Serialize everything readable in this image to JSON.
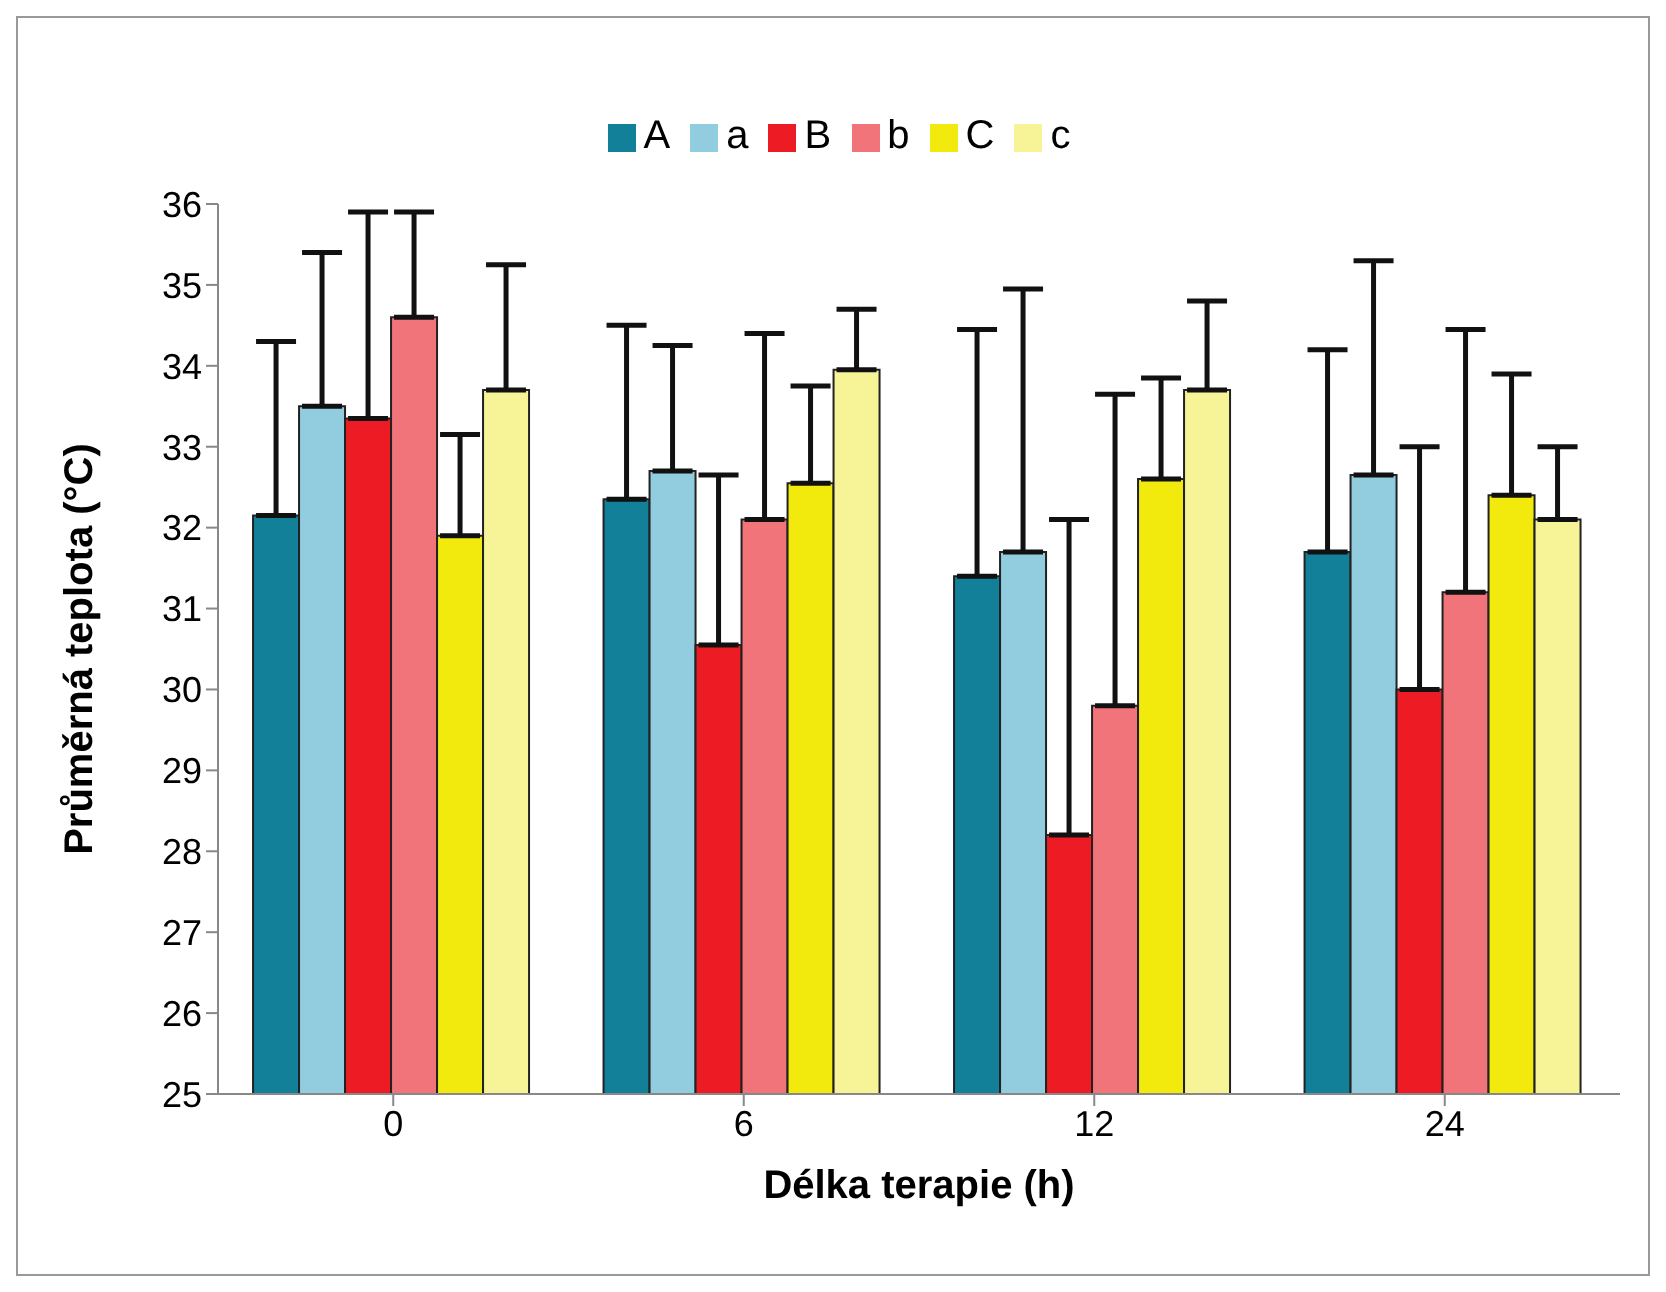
{
  "chart_data": {
    "type": "bar",
    "xlabel": "Délka terapie (h)",
    "ylabel": "Průměrná teplota (°C)",
    "categories": [
      "0",
      "6",
      "12",
      "24"
    ],
    "series": [
      {
        "name": "A",
        "color": "#13809a",
        "values": [
          32.15,
          32.35,
          31.4,
          31.7
        ],
        "errors": [
          [
            32.15,
            34.3
          ],
          [
            32.35,
            34.5
          ],
          [
            31.4,
            34.45
          ],
          [
            31.7,
            34.2
          ]
        ]
      },
      {
        "name": "a",
        "color": "#92cddf",
        "values": [
          33.5,
          32.7,
          31.7,
          32.65
        ],
        "errors": [
          [
            33.5,
            35.4
          ],
          [
            32.7,
            34.25
          ],
          [
            31.7,
            34.95
          ],
          [
            32.65,
            35.3
          ]
        ]
      },
      {
        "name": "B",
        "color": "#ed1c24",
        "values": [
          33.35,
          30.55,
          28.2,
          30.0
        ],
        "errors": [
          [
            33.35,
            35.9
          ],
          [
            30.55,
            32.65
          ],
          [
            28.2,
            32.1
          ],
          [
            30.0,
            33.0
          ]
        ]
      },
      {
        "name": "b",
        "color": "#f07479",
        "values": [
          34.6,
          32.1,
          29.8,
          31.2
        ],
        "errors": [
          [
            34.6,
            35.9
          ],
          [
            32.1,
            34.4
          ],
          [
            29.8,
            33.65
          ],
          [
            31.2,
            34.45
          ]
        ]
      },
      {
        "name": "C",
        "color": "#f2ea0c",
        "values": [
          31.9,
          32.55,
          32.6,
          32.4
        ],
        "errors": [
          [
            31.9,
            33.15
          ],
          [
            32.55,
            33.75
          ],
          [
            32.6,
            33.85
          ],
          [
            32.4,
            33.9
          ]
        ]
      },
      {
        "name": "c",
        "color": "#f6f497",
        "values": [
          33.7,
          33.95,
          33.7,
          32.1
        ],
        "errors": [
          [
            33.7,
            35.25
          ],
          [
            33.95,
            34.7
          ],
          [
            33.7,
            34.8
          ],
          [
            32.1,
            33.0
          ]
        ]
      }
    ],
    "ylim": [
      25,
      36
    ],
    "yticks": [
      25,
      26,
      27,
      28,
      29,
      30,
      31,
      32,
      33,
      34,
      35,
      36
    ],
    "legend": "top"
  }
}
